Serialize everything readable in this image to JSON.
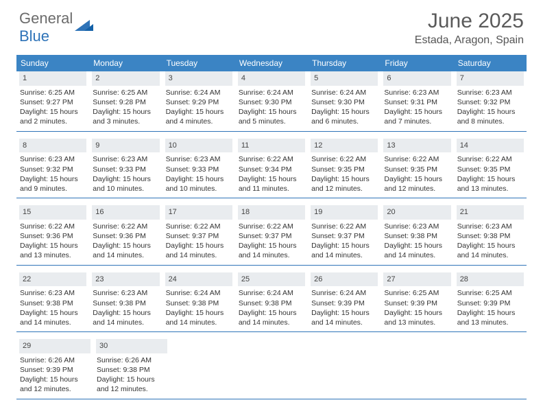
{
  "logo": {
    "top": "General",
    "bottom": "Blue"
  },
  "title": {
    "month": "June 2025",
    "location": "Estada, Aragon, Spain"
  },
  "colors": {
    "header_bg": "#3b84c4",
    "week_border": "#2e73b8",
    "daynum_bg": "#e9ecef",
    "logo_blue": "#2e73b8",
    "logo_gray": "#6b6b6b"
  },
  "weekdays": [
    "Sunday",
    "Monday",
    "Tuesday",
    "Wednesday",
    "Thursday",
    "Friday",
    "Saturday"
  ],
  "weeks": [
    [
      {
        "n": "1",
        "sr": "6:25 AM",
        "ss": "9:27 PM",
        "dl": "15 hours and 2 minutes."
      },
      {
        "n": "2",
        "sr": "6:25 AM",
        "ss": "9:28 PM",
        "dl": "15 hours and 3 minutes."
      },
      {
        "n": "3",
        "sr": "6:24 AM",
        "ss": "9:29 PM",
        "dl": "15 hours and 4 minutes."
      },
      {
        "n": "4",
        "sr": "6:24 AM",
        "ss": "9:30 PM",
        "dl": "15 hours and 5 minutes."
      },
      {
        "n": "5",
        "sr": "6:24 AM",
        "ss": "9:30 PM",
        "dl": "15 hours and 6 minutes."
      },
      {
        "n": "6",
        "sr": "6:23 AM",
        "ss": "9:31 PM",
        "dl": "15 hours and 7 minutes."
      },
      {
        "n": "7",
        "sr": "6:23 AM",
        "ss": "9:32 PM",
        "dl": "15 hours and 8 minutes."
      }
    ],
    [
      {
        "n": "8",
        "sr": "6:23 AM",
        "ss": "9:32 PM",
        "dl": "15 hours and 9 minutes."
      },
      {
        "n": "9",
        "sr": "6:23 AM",
        "ss": "9:33 PM",
        "dl": "15 hours and 10 minutes."
      },
      {
        "n": "10",
        "sr": "6:23 AM",
        "ss": "9:33 PM",
        "dl": "15 hours and 10 minutes."
      },
      {
        "n": "11",
        "sr": "6:22 AM",
        "ss": "9:34 PM",
        "dl": "15 hours and 11 minutes."
      },
      {
        "n": "12",
        "sr": "6:22 AM",
        "ss": "9:35 PM",
        "dl": "15 hours and 12 minutes."
      },
      {
        "n": "13",
        "sr": "6:22 AM",
        "ss": "9:35 PM",
        "dl": "15 hours and 12 minutes."
      },
      {
        "n": "14",
        "sr": "6:22 AM",
        "ss": "9:35 PM",
        "dl": "15 hours and 13 minutes."
      }
    ],
    [
      {
        "n": "15",
        "sr": "6:22 AM",
        "ss": "9:36 PM",
        "dl": "15 hours and 13 minutes."
      },
      {
        "n": "16",
        "sr": "6:22 AM",
        "ss": "9:36 PM",
        "dl": "15 hours and 14 minutes."
      },
      {
        "n": "17",
        "sr": "6:22 AM",
        "ss": "9:37 PM",
        "dl": "15 hours and 14 minutes."
      },
      {
        "n": "18",
        "sr": "6:22 AM",
        "ss": "9:37 PM",
        "dl": "15 hours and 14 minutes."
      },
      {
        "n": "19",
        "sr": "6:22 AM",
        "ss": "9:37 PM",
        "dl": "15 hours and 14 minutes."
      },
      {
        "n": "20",
        "sr": "6:23 AM",
        "ss": "9:38 PM",
        "dl": "15 hours and 14 minutes."
      },
      {
        "n": "21",
        "sr": "6:23 AM",
        "ss": "9:38 PM",
        "dl": "15 hours and 14 minutes."
      }
    ],
    [
      {
        "n": "22",
        "sr": "6:23 AM",
        "ss": "9:38 PM",
        "dl": "15 hours and 14 minutes."
      },
      {
        "n": "23",
        "sr": "6:23 AM",
        "ss": "9:38 PM",
        "dl": "15 hours and 14 minutes."
      },
      {
        "n": "24",
        "sr": "6:24 AM",
        "ss": "9:38 PM",
        "dl": "15 hours and 14 minutes."
      },
      {
        "n": "25",
        "sr": "6:24 AM",
        "ss": "9:38 PM",
        "dl": "15 hours and 14 minutes."
      },
      {
        "n": "26",
        "sr": "6:24 AM",
        "ss": "9:39 PM",
        "dl": "15 hours and 14 minutes."
      },
      {
        "n": "27",
        "sr": "6:25 AM",
        "ss": "9:39 PM",
        "dl": "15 hours and 13 minutes."
      },
      {
        "n": "28",
        "sr": "6:25 AM",
        "ss": "9:39 PM",
        "dl": "15 hours and 13 minutes."
      }
    ],
    [
      {
        "n": "29",
        "sr": "6:26 AM",
        "ss": "9:39 PM",
        "dl": "15 hours and 12 minutes."
      },
      {
        "n": "30",
        "sr": "6:26 AM",
        "ss": "9:38 PM",
        "dl": "15 hours and 12 minutes."
      },
      null,
      null,
      null,
      null,
      null
    ]
  ],
  "labels": {
    "sunrise": "Sunrise: ",
    "sunset": "Sunset: ",
    "daylight": "Daylight: "
  }
}
